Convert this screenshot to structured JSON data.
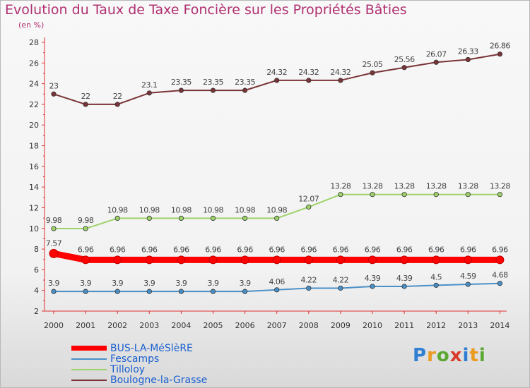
{
  "title": "Evolution du Taux de Taxe Foncière sur les Propriétés Bâties",
  "subtitle": "(en %)",
  "logo": {
    "letters": [
      "P",
      "r",
      "o",
      "x",
      "i",
      "t",
      "i"
    ],
    "colors": [
      "#2f7fd2",
      "#e99a1f",
      "#5aa832",
      "#d73a2a",
      "#2f7fd2",
      "#e99a1f",
      "#5aa832"
    ]
  },
  "chart_data": {
    "type": "line",
    "title": "Evolution du Taux de Taxe Foncière sur les Propriétés Bâties",
    "ylabel": "(en %)",
    "xlabel": "",
    "ylim": [
      2,
      28
    ],
    "yticks": [
      2,
      4,
      6,
      8,
      10,
      12,
      14,
      16,
      18,
      20,
      22,
      24,
      26,
      28
    ],
    "categories": [
      "2000",
      "2001",
      "2002",
      "2003",
      "2004",
      "2005",
      "2006",
      "2007",
      "2008",
      "2009",
      "2010",
      "2011",
      "2012",
      "2013",
      "2014"
    ],
    "series": [
      {
        "name": "BUS-LA-MéSlèRE",
        "color": "#ff0000",
        "values": [
          7.57,
          6.96,
          6.96,
          6.96,
          6.96,
          6.96,
          6.96,
          6.96,
          6.96,
          6.96,
          6.96,
          6.96,
          6.96,
          6.96,
          6.96
        ],
        "labels": [
          "7.57",
          "6.96",
          "6.96",
          "6.96",
          "6.96",
          "6.96",
          "6.96",
          "6.96",
          "6.96",
          "6.96",
          "6.96",
          "6.96",
          "6.96",
          "6.96",
          "6.96"
        ]
      },
      {
        "name": "Fescamps",
        "color": "#4a90c8",
        "values": [
          3.9,
          3.9,
          3.9,
          3.9,
          3.9,
          3.9,
          3.9,
          4.06,
          4.22,
          4.22,
          4.39,
          4.39,
          4.5,
          4.59,
          4.68
        ],
        "labels": [
          "3.9",
          "3.9",
          "3.9",
          "3.9",
          "3.9",
          "3.9",
          "3.9",
          "4.06",
          "4.22",
          "4.22",
          "4.39",
          "4.39",
          "4.5",
          "4.59",
          "4.68"
        ]
      },
      {
        "name": "Tilloloy",
        "color": "#9ed36a",
        "values": [
          9.98,
          9.98,
          10.98,
          10.98,
          10.98,
          10.98,
          10.98,
          10.98,
          12.07,
          13.28,
          13.28,
          13.28,
          13.28,
          13.28,
          13.28
        ],
        "labels": [
          "9.98",
          "9.98",
          "10.98",
          "10.98",
          "10.98",
          "10.98",
          "10.98",
          "10.98",
          "12.07",
          "13.28",
          "13.28",
          "13.28",
          "13.28",
          "13.28",
          "13.28"
        ]
      },
      {
        "name": "Boulogne-la-Grasse",
        "color": "#7a3438",
        "values": [
          23,
          22,
          22,
          23.1,
          23.35,
          23.35,
          23.35,
          24.32,
          24.32,
          24.32,
          25.05,
          25.56,
          26.07,
          26.33,
          26.86
        ],
        "labels": [
          "23",
          "22",
          "22",
          "23.1",
          "23.35",
          "23.35",
          "23.35",
          "24.32",
          "24.32",
          "24.32",
          "25.05",
          "25.56",
          "26.07",
          "26.33",
          "26.86"
        ]
      }
    ],
    "legend_position": "bottom-left",
    "grid": false
  }
}
